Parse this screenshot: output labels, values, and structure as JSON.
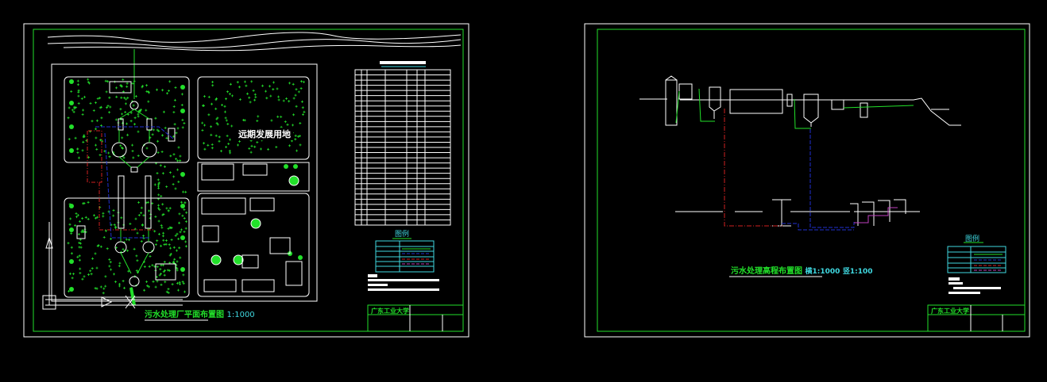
{
  "colors": {
    "background": "#000000",
    "line": "#ffffff",
    "frame": "#22e02a",
    "annotation": "#3fd8e0",
    "sludge_pipe": "#d02020",
    "water_pipe": "#2030d0",
    "gas_pipe": "#c040c0"
  },
  "sheet1": {
    "reserved_area_label": "远期发展用地",
    "drawing_title": "污水处理厂平面布置图",
    "scale": "1:1000",
    "legend_title": "图例",
    "school": "广东工业大学"
  },
  "sheet2": {
    "drawing_title": "污水处理高程布置图",
    "scale_h": "横1:1000",
    "scale_v": "竖1:100",
    "legend_title": "图例",
    "school": "广东工业大学"
  }
}
